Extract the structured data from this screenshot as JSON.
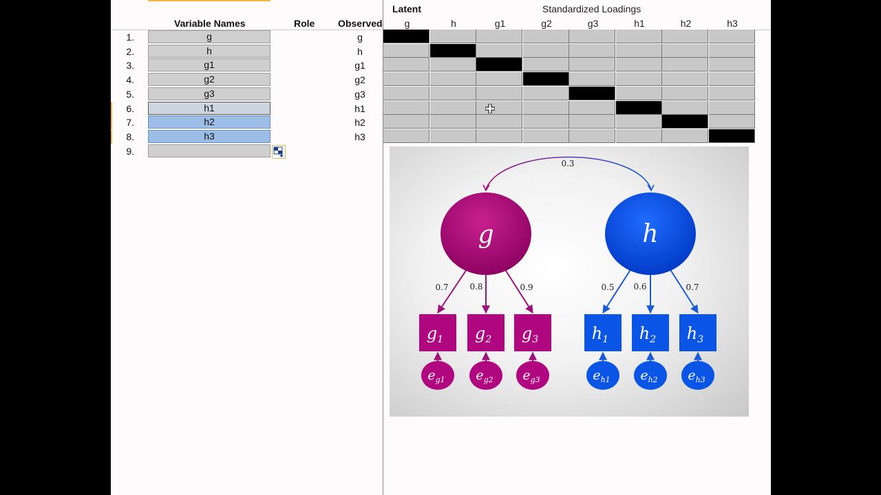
{
  "headers": {
    "variable_names": "Variable Names",
    "role": "Role",
    "observed": "Observed",
    "latent": "Latent",
    "standardized_loadings": "Standardized Loadings"
  },
  "loading_columns": [
    "g",
    "h",
    "g1",
    "g2",
    "g3",
    "h1",
    "h2",
    "h3"
  ],
  "rows": [
    {
      "num": "1.",
      "name": "g",
      "observed": "g"
    },
    {
      "num": "2.",
      "name": "h",
      "observed": "h"
    },
    {
      "num": "3.",
      "name": "g1",
      "observed": "g1"
    },
    {
      "num": "4.",
      "name": "g2",
      "observed": "g2"
    },
    {
      "num": "5.",
      "name": "g3",
      "observed": "g3"
    },
    {
      "num": "6.",
      "name": "h1",
      "observed": "h1"
    },
    {
      "num": "7.",
      "name": "h2",
      "observed": "h2"
    },
    {
      "num": "8.",
      "name": "h3",
      "observed": "h3"
    },
    {
      "num": "9.",
      "name": "",
      "observed": ""
    }
  ],
  "selected_rows": [
    6,
    7,
    8
  ],
  "diagram": {
    "latent_g": "g",
    "latent_h": "h",
    "covariance": "0.3",
    "g_loadings": [
      "0.7",
      "0.8",
      "0.9"
    ],
    "h_loadings": [
      "0.5",
      "0.6",
      "0.7"
    ],
    "g_indicators": [
      "g",
      "g",
      "g"
    ],
    "g_indicator_subs": [
      "1",
      "2",
      "3"
    ],
    "h_indicators": [
      "h",
      "h",
      "h"
    ],
    "h_indicator_subs": [
      "1",
      "2",
      "3"
    ],
    "g_errors": [
      "e",
      "e",
      "e"
    ],
    "g_error_subs": [
      "g1",
      "g2",
      "g3"
    ],
    "h_errors": [
      "e",
      "e",
      "e"
    ],
    "h_error_subs": [
      "h1",
      "h2",
      "h3"
    ],
    "colors": {
      "g": "#b0067f",
      "h": "#0a55e6"
    }
  }
}
